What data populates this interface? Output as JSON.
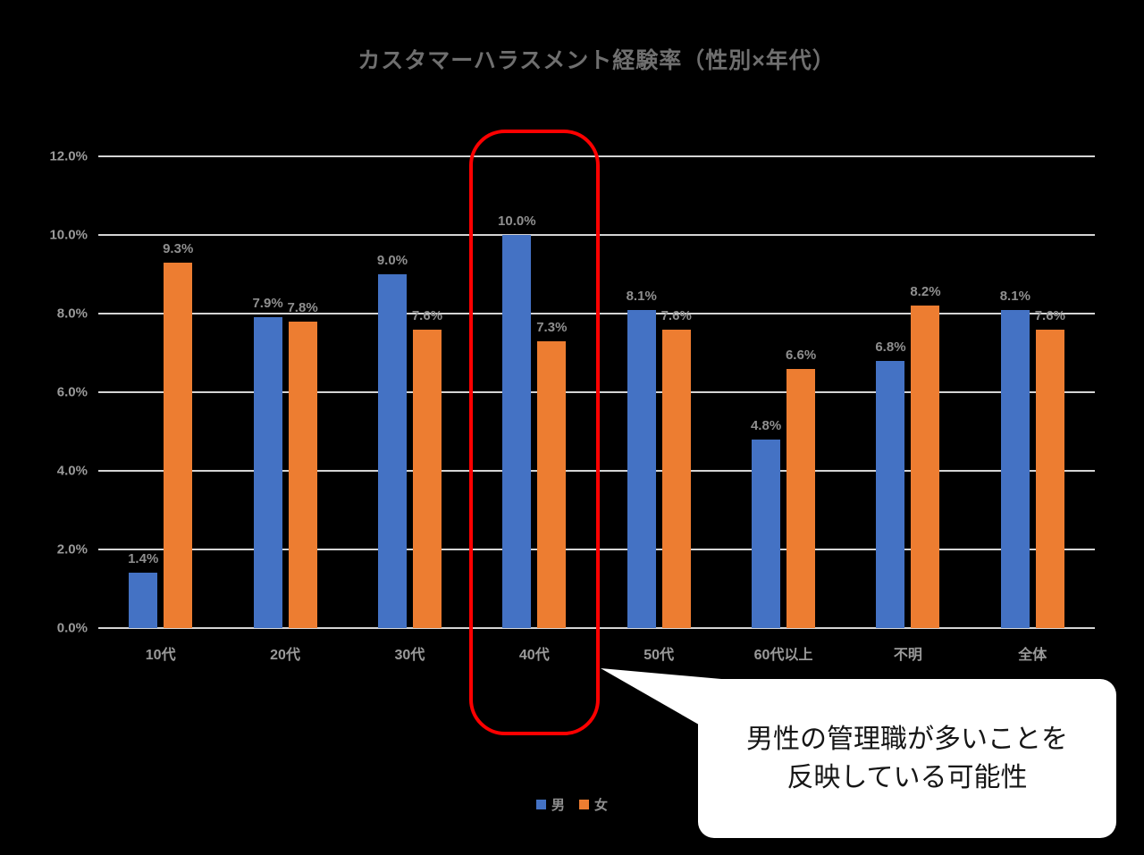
{
  "chart_data": {
    "type": "bar",
    "title": "カスタマーハラスメント経験率（性別×年代）",
    "categories": [
      "10代",
      "20代",
      "30代",
      "40代",
      "50代",
      "60代以上",
      "不明",
      "全体"
    ],
    "series": [
      {
        "name": "男",
        "color": "#4472C4",
        "values": [
          1.4,
          7.9,
          9.0,
          10.0,
          8.1,
          4.8,
          6.8,
          8.1
        ],
        "labels": [
          "1.4%",
          "7.9%",
          "9.0%",
          "10.0%",
          "8.1%",
          "4.8%",
          "6.8%",
          "8.1%"
        ]
      },
      {
        "name": "女",
        "color": "#ED7D31",
        "values": [
          9.3,
          7.8,
          7.6,
          7.3,
          7.6,
          6.6,
          8.2,
          7.6
        ],
        "labels": [
          "9.3%",
          "7.8%",
          "7.6%",
          "7.3%",
          "7.6%",
          "6.6%",
          "8.2%",
          "7.6%"
        ]
      }
    ],
    "ylim": [
      0,
      12
    ],
    "ytick_step": 2,
    "ytick_labels": [
      "0.0%",
      "2.0%",
      "4.0%",
      "6.0%",
      "8.0%",
      "10.0%",
      "12.0%"
    ],
    "grid": true,
    "legend_position": "bottom"
  },
  "annotation": {
    "highlighted_category": "40代",
    "highlight_color": "#fe0000",
    "callout": {
      "line1": "男性の管理職が多いことを",
      "line2": "反映している可能性"
    }
  },
  "styles": {
    "background": "#000000",
    "grid_color": "#d4d4d4",
    "title_color": "#6f6f6f",
    "axis_text_color": "#9a9a9a",
    "data_label_color": "#8f8f8f"
  }
}
